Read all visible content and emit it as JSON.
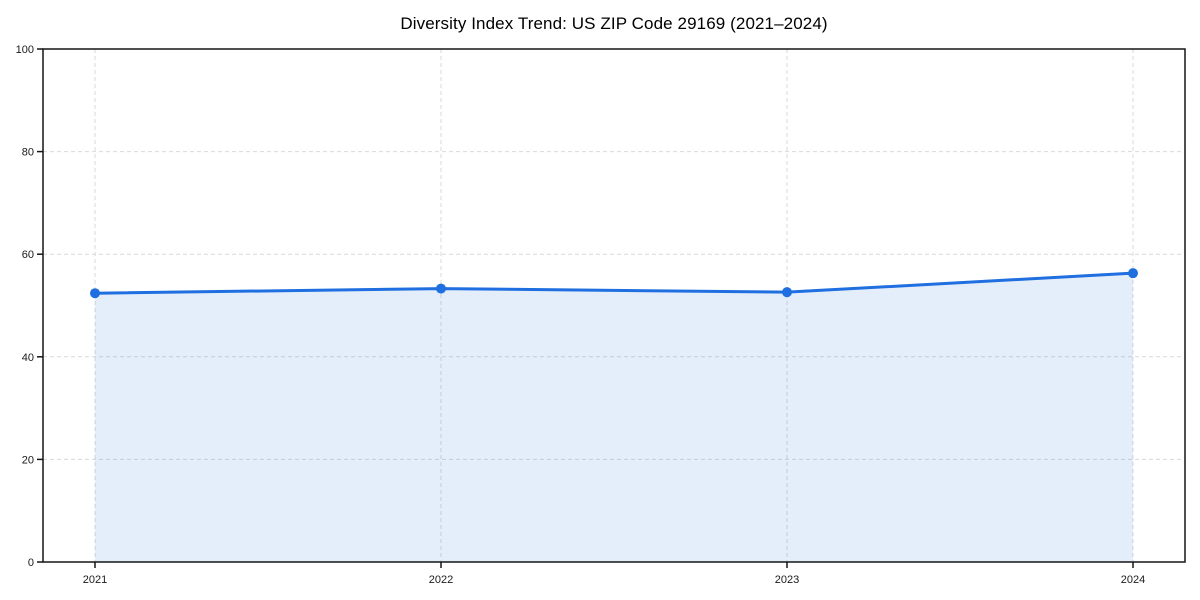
{
  "chart_data": {
    "type": "area",
    "title": "Diversity Index Trend: US ZIP Code 29169 (2021–2024)",
    "categories": [
      "2021",
      "2022",
      "2023",
      "2024"
    ],
    "series": [
      {
        "name": "Diversity Index",
        "values": [
          52.4,
          53.3,
          52.6,
          56.3
        ]
      }
    ],
    "xlabel": "",
    "ylabel": "",
    "ylim": [
      0,
      100
    ],
    "yticks": [
      0,
      20,
      40,
      60,
      80,
      100
    ],
    "grid": true,
    "grid_style": "dashed",
    "legend": false,
    "colors": {
      "line": "#1f6fe0",
      "marker": "#1f6fe0",
      "fill_rgba": "rgba(32,112,224,0.12)",
      "grid": "#d9d9d9",
      "spine": "#151515",
      "tick_label": "#1a1a1a",
      "title": "#000000",
      "background": "#ffffff"
    }
  }
}
